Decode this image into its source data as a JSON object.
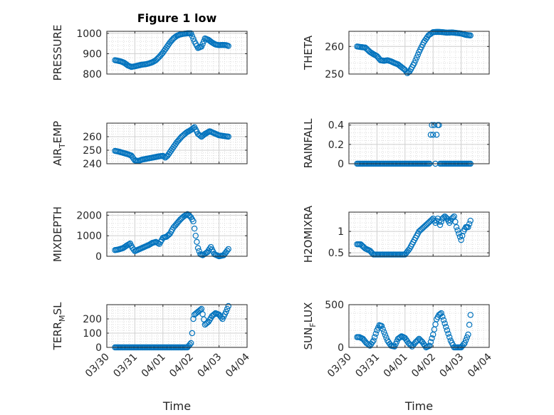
{
  "figure": {
    "title": "Figure 1 low",
    "marker_color": "#0072BD"
  },
  "chart_data": [
    {
      "type": "scatter",
      "ylabel": "PRESSURE",
      "yticks": [
        800,
        900,
        1000
      ],
      "ylim": [
        800,
        1010
      ],
      "xlabel": "",
      "grid": true,
      "x": [
        "03/30 07:00",
        "03/30 09:00",
        "03/30 12:00",
        "03/30 15:00",
        "03/30 18:00",
        "03/30 21:00",
        "03/31 00:00",
        "03/31 03:00",
        "03/31 06:00",
        "03/31 09:00",
        "03/31 12:00",
        "03/31 15:00",
        "03/31 18:00",
        "03/31 21:00",
        "04/01 00:00",
        "04/01 03:00",
        "04/01 06:00",
        "04/01 09:00",
        "04/01 12:00",
        "04/01 15:00",
        "04/01 18:00",
        "04/01 21:00",
        "04/02 00:00",
        "04/02 03:00",
        "04/02 06:00",
        "04/02 09:00",
        "04/02 12:00",
        "04/02 15:00",
        "04/02 18:00",
        "04/02 21:00",
        "04/03 00:00",
        "04/03 03:00",
        "04/03 06:00",
        "04/03 08:00"
      ],
      "y": [
        868,
        866,
        862,
        855,
        842,
        835,
        838,
        842,
        846,
        848,
        852,
        858,
        868,
        885,
        905,
        930,
        955,
        975,
        988,
        995,
        998,
        1000,
        1000,
        960,
        928,
        935,
        975,
        968,
        955,
        945,
        942,
        943,
        942,
        938
      ]
    },
    {
      "type": "scatter",
      "ylabel": "THETA",
      "yticks": [
        250,
        260
      ],
      "ylim": [
        250,
        265.5
      ],
      "xlabel": "",
      "grid": true,
      "x": [
        "03/30 07:00",
        "03/30 10:00",
        "03/30 14:00",
        "03/30 18:00",
        "03/30 21:00",
        "03/31 00:00",
        "03/31 03:00",
        "03/31 06:00",
        "03/31 09:00",
        "03/31 12:00",
        "03/31 15:00",
        "03/31 18:00",
        "03/31 21:00",
        "04/01 00:00",
        "04/01 02:00",
        "04/01 04:00",
        "04/01 08:00",
        "04/01 12:00",
        "04/01 16:00",
        "04/01 20:00",
        "04/02 00:00",
        "04/02 04:00",
        "04/02 08:00",
        "04/02 12:00",
        "04/02 16:00",
        "04/02 20:00",
        "04/03 00:00",
        "04/03 04:00",
        "04/03 08:00"
      ],
      "y": [
        260,
        259.8,
        259.6,
        258,
        257.2,
        256.5,
        255,
        254.8,
        255,
        254.6,
        254,
        253.5,
        252.5,
        251.5,
        250.3,
        251,
        254,
        258,
        261.5,
        264,
        265.2,
        265.3,
        265.2,
        265,
        265.1,
        264.9,
        264.7,
        264.2,
        264
      ]
    },
    {
      "type": "scatter",
      "ylabel": "AIR_TEMP",
      "ylabel_main": "AIR",
      "ylabel_sub": "T",
      "ylabel_rest": "EMP",
      "yticks": [
        240,
        250,
        260
      ],
      "ylim": [
        240,
        270
      ],
      "xlabel": "",
      "grid": true,
      "x": [
        "03/30 07:00",
        "03/30 10:00",
        "03/30 14:00",
        "03/30 18:00",
        "03/30 21:00",
        "03/31 00:00",
        "03/31 03:00",
        "03/31 06:00",
        "03/31 09:00",
        "03/31 12:00",
        "03/31 15:00",
        "03/31 18:00",
        "03/31 21:00",
        "04/01 00:00",
        "04/01 02:00",
        "04/01 04:00",
        "04/01 08:00",
        "04/01 12:00",
        "04/01 16:00",
        "04/01 20:00",
        "04/02 00:00",
        "04/02 03:00",
        "04/02 06:00",
        "04/02 09:00",
        "04/02 12:00",
        "04/02 16:00",
        "04/02 20:00",
        "04/03 00:00",
        "04/03 04:00",
        "04/03 08:00"
      ],
      "y": [
        249.5,
        249,
        248,
        247,
        246,
        242.5,
        242,
        243,
        243.5,
        244,
        244.5,
        245,
        245.5,
        245.8,
        244.5,
        246,
        251,
        256,
        260,
        263,
        265,
        267,
        262,
        260,
        262,
        264,
        262.5,
        261,
        260.5,
        260
      ]
    },
    {
      "type": "scatter",
      "ylabel": "RAINFALL",
      "yticks": [
        0,
        0.2,
        0.4
      ],
      "ylim": [
        0,
        0.42
      ],
      "xlabel": "",
      "grid": true,
      "x": [
        "03/30 07:00",
        "03/30 12:00",
        "03/30 18:00",
        "03/31 00:00",
        "03/31 06:00",
        "03/31 12:00",
        "03/31 18:00",
        "04/01 00:00",
        "04/01 06:00",
        "04/01 12:00",
        "04/01 18:00",
        "04/01 21:00",
        "04/01 22:00",
        "04/01 23:00",
        "04/02 00:00",
        "04/02 01:00",
        "04/02 02:00",
        "04/02 03:00",
        "04/02 04:00",
        "04/02 05:00",
        "04/02 06:00",
        "04/02 12:00",
        "04/02 18:00",
        "04/03 00:00",
        "04/03 06:00",
        "04/03 08:00"
      ],
      "y": [
        0,
        0,
        0,
        0,
        0,
        0,
        0,
        0,
        0,
        0,
        0,
        0,
        0.3,
        0.4,
        0.3,
        0.4,
        0,
        0.3,
        0.4,
        0.4,
        0,
        0,
        0,
        0,
        0,
        0
      ]
    },
    {
      "type": "scatter",
      "ylabel": "MIXDEPTH",
      "yticks": [
        0,
        1000,
        2000
      ],
      "ylim": [
        0,
        2150
      ],
      "xlabel": "",
      "grid": true,
      "x": [
        "03/30 07:00",
        "03/30 10:00",
        "03/30 14:00",
        "03/30 17:00",
        "03/30 20:00",
        "03/30 22:00",
        "03/31 00:00",
        "03/31 04:00",
        "03/31 08:00",
        "03/31 12:00",
        "03/31 15:00",
        "03/31 18:00",
        "03/31 21:00",
        "04/01 00:00",
        "04/01 03:00",
        "04/01 06:00",
        "04/01 09:00",
        "04/01 12:00",
        "04/01 15:00",
        "04/01 18:00",
        "04/01 21:00",
        "04/02 00:00",
        "04/02 02:00",
        "04/02 04:00",
        "04/02 06:00",
        "04/02 08:00",
        "04/02 10:00",
        "04/02 14:00",
        "04/02 17:00",
        "04/02 20:00",
        "04/03 00:00",
        "04/03 04:00",
        "04/03 06:00",
        "04/03 08:00"
      ],
      "y": [
        300,
        330,
        400,
        520,
        620,
        400,
        250,
        350,
        450,
        550,
        650,
        700,
        600,
        900,
        950,
        1100,
        1400,
        1600,
        1800,
        1950,
        2050,
        1900,
        1700,
        1000,
        400,
        100,
        50,
        200,
        450,
        100,
        0,
        50,
        200,
        350
      ]
    },
    {
      "type": "scatter",
      "ylabel": "H2OMIXRA",
      "yticks": [
        0.5,
        1
      ],
      "ylim": [
        0.42,
        1.45
      ],
      "xlabel": "",
      "grid": true,
      "x": [
        "03/30 07:00",
        "03/30 10:00",
        "03/30 14:00",
        "03/30 18:00",
        "03/30 21:00",
        "03/31 00:00",
        "03/31 06:00",
        "03/31 12:00",
        "03/31 18:00",
        "04/01 00:00",
        "04/01 04:00",
        "04/01 08:00",
        "04/01 12:00",
        "04/01 16:00",
        "04/01 20:00",
        "04/02 00:00",
        "04/02 02:00",
        "04/02 04:00",
        "04/02 06:00",
        "04/02 08:00",
        "04/02 10:00",
        "04/02 12:00",
        "04/02 14:00",
        "04/02 16:00",
        "04/02 18:00",
        "04/02 20:00",
        "04/02 22:00",
        "04/03 00:00",
        "04/03 02:00",
        "04/03 04:00",
        "04/03 06:00",
        "04/03 08:00"
      ],
      "y": [
        0.7,
        0.7,
        0.6,
        0.55,
        0.46,
        0.46,
        0.46,
        0.46,
        0.46,
        0.46,
        0.6,
        0.8,
        1.0,
        1.1,
        1.2,
        1.3,
        1.2,
        1.3,
        1.15,
        1.3,
        1.35,
        1.3,
        1.2,
        1.3,
        1.35,
        1.1,
        0.95,
        0.8,
        1.0,
        1.1,
        1.1,
        1.25
      ]
    },
    {
      "type": "scatter",
      "ylabel": "TERR_MSL",
      "ylabel_main": "TERR",
      "ylabel_sub": "M",
      "ylabel_rest": "SL",
      "yticks": [
        0,
        100,
        200
      ],
      "ylim": [
        0,
        300
      ],
      "xlabel": "Time",
      "grid": true,
      "xticks": [
        "03/30",
        "03/31",
        "04/01",
        "04/02",
        "04/03",
        "04/04"
      ],
      "x": [
        "03/30 07:00",
        "03/30 12:00",
        "03/30 18:00",
        "03/31 00:00",
        "03/31 06:00",
        "03/31 12:00",
        "03/31 18:00",
        "04/01 00:00",
        "04/01 06:00",
        "04/01 12:00",
        "04/01 18:00",
        "04/01 21:00",
        "04/02 00:00",
        "04/02 01:00",
        "04/02 02:00",
        "04/02 03:00",
        "04/02 06:00",
        "04/02 09:00",
        "04/02 12:00",
        "04/02 15:00",
        "04/02 18:00",
        "04/02 21:00",
        "04/03 00:00",
        "04/03 03:00",
        "04/03 06:00",
        "04/03 08:00"
      ],
      "y": [
        0,
        0,
        0,
        0,
        0,
        0,
        0,
        0,
        0,
        0,
        0,
        0,
        30,
        100,
        200,
        230,
        250,
        270,
        160,
        180,
        220,
        240,
        230,
        200,
        250,
        290
      ]
    },
    {
      "type": "scatter",
      "ylabel": "SUN_FLUX",
      "ylabel_main": "SUN",
      "ylabel_sub": "F",
      "ylabel_rest": "LUX",
      "yticks": [
        0,
        500
      ],
      "ylim": [
        0,
        500
      ],
      "xlabel": "Time",
      "grid": true,
      "xticks": [
        "03/30",
        "03/31",
        "04/01",
        "04/02",
        "04/03",
        "04/04"
      ],
      "x": [
        "03/30 07:00",
        "03/30 09:00",
        "03/30 12:00",
        "03/30 15:00",
        "03/30 18:00",
        "03/30 21:00",
        "03/31 00:00",
        "03/31 02:00",
        "03/31 04:00",
        "03/31 06:00",
        "03/31 09:00",
        "03/31 12:00",
        "03/31 15:00",
        "03/31 18:00",
        "03/31 21:00",
        "04/01 00:00",
        "04/01 03:00",
        "04/01 06:00",
        "04/01 09:00",
        "04/01 12:00",
        "04/01 15:00",
        "04/01 18:00",
        "04/01 21:00",
        "04/02 00:00",
        "04/02 03:00",
        "04/02 05:00",
        "04/02 07:00",
        "04/02 09:00",
        "04/02 12:00",
        "04/02 15:00",
        "04/02 18:00",
        "04/02 21:00",
        "04/03 00:00",
        "04/03 03:00",
        "04/03 06:00",
        "04/03 08:00"
      ],
      "y": [
        120,
        120,
        100,
        50,
        20,
        80,
        200,
        260,
        250,
        180,
        80,
        20,
        10,
        100,
        130,
        110,
        50,
        10,
        60,
        100,
        60,
        0,
        20,
        150,
        330,
        380,
        400,
        320,
        200,
        80,
        0,
        0,
        0,
        50,
        150,
        380
      ]
    }
  ]
}
